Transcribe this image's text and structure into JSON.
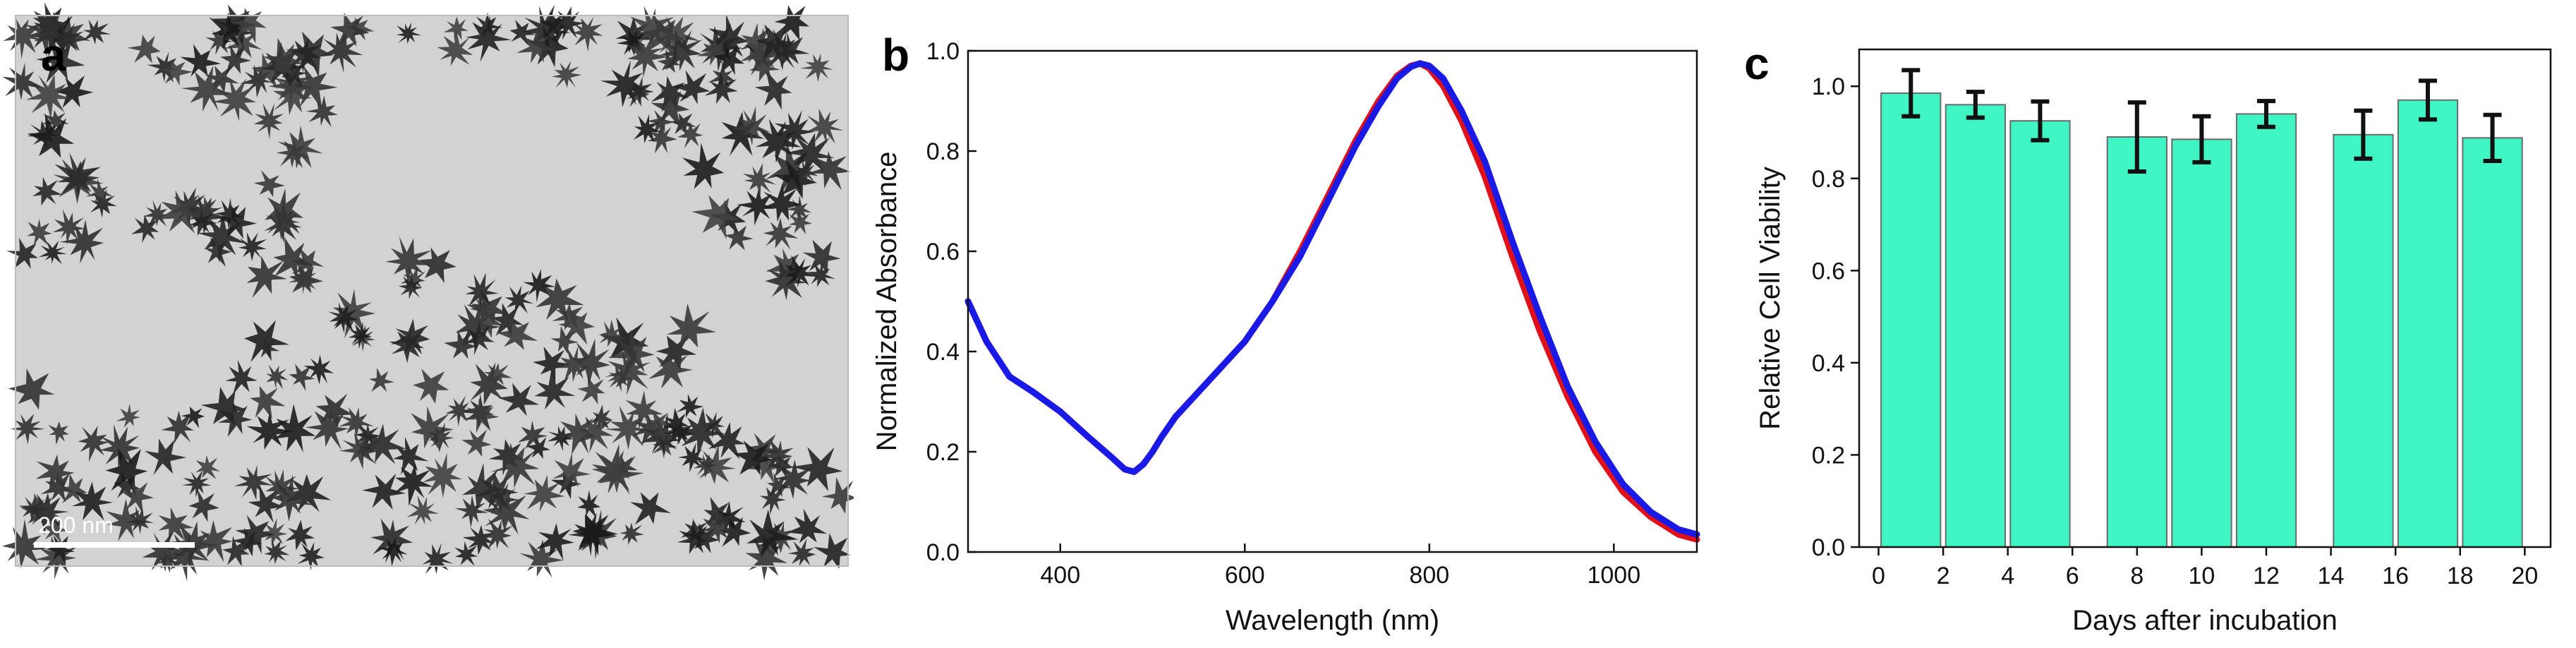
{
  "panels": {
    "a": {
      "label": "a",
      "scale_bar": "200  nm"
    },
    "b": {
      "label": "b"
    },
    "c": {
      "label": "c"
    }
  },
  "chart_data": [
    {
      "panel": "b",
      "type": "line",
      "title": "",
      "xlabel": "Wavelength (nm)",
      "ylabel": "Normalized Absorbance",
      "xlim": [
        300,
        1090
      ],
      "ylim": [
        0,
        1.0
      ],
      "xticks": [
        400,
        600,
        800,
        1000
      ],
      "yticks": [
        0.0,
        0.2,
        0.4,
        0.6,
        0.8,
        1.0
      ],
      "grid": false,
      "legend": "none",
      "series": [
        {
          "name": "red",
          "color": "#e0101a",
          "x": [
            300,
            320,
            345,
            370,
            400,
            430,
            455,
            470,
            480,
            490,
            500,
            510,
            525,
            545,
            570,
            600,
            630,
            660,
            690,
            720,
            745,
            765,
            780,
            790,
            800,
            815,
            835,
            860,
            890,
            920,
            950,
            980,
            1010,
            1040,
            1070,
            1090
          ],
          "y": [
            0.5,
            0.42,
            0.35,
            0.32,
            0.28,
            0.23,
            0.19,
            0.165,
            0.16,
            0.175,
            0.2,
            0.23,
            0.27,
            0.31,
            0.36,
            0.42,
            0.5,
            0.6,
            0.71,
            0.82,
            0.9,
            0.95,
            0.97,
            0.975,
            0.965,
            0.93,
            0.86,
            0.75,
            0.59,
            0.44,
            0.31,
            0.2,
            0.12,
            0.07,
            0.035,
            0.025
          ]
        },
        {
          "name": "blue",
          "color": "#1a1ae6",
          "x": [
            300,
            320,
            345,
            370,
            400,
            430,
            455,
            470,
            480,
            490,
            500,
            510,
            525,
            545,
            570,
            600,
            630,
            660,
            690,
            720,
            745,
            765,
            780,
            790,
            800,
            815,
            835,
            860,
            890,
            920,
            950,
            980,
            1010,
            1040,
            1070,
            1090
          ],
          "y": [
            0.5,
            0.42,
            0.35,
            0.32,
            0.28,
            0.23,
            0.19,
            0.165,
            0.16,
            0.175,
            0.2,
            0.23,
            0.27,
            0.31,
            0.36,
            0.42,
            0.5,
            0.59,
            0.7,
            0.81,
            0.89,
            0.945,
            0.968,
            0.975,
            0.97,
            0.945,
            0.88,
            0.78,
            0.62,
            0.47,
            0.33,
            0.22,
            0.135,
            0.08,
            0.045,
            0.035
          ]
        }
      ]
    },
    {
      "panel": "c",
      "type": "bar",
      "title": "",
      "xlabel": "Days after incubation",
      "ylabel": "Relative Cell Viability",
      "xlim": [
        -0.6,
        20.8
      ],
      "ylim": [
        0,
        1.08
      ],
      "xticks": [
        0,
        2,
        4,
        6,
        8,
        10,
        12,
        14,
        16,
        18,
        20
      ],
      "yticks": [
        0.0,
        0.2,
        0.4,
        0.6,
        0.8,
        1.0
      ],
      "grid": false,
      "legend": "none",
      "bar_color": "#40f5c4",
      "x": [
        1,
        3,
        5,
        8,
        10,
        12,
        15,
        17,
        19
      ],
      "values": [
        0.985,
        0.96,
        0.925,
        0.89,
        0.885,
        0.94,
        0.895,
        0.97,
        0.888
      ],
      "errors": [
        0.05,
        0.028,
        0.042,
        0.075,
        0.05,
        0.028,
        0.052,
        0.042,
        0.05
      ]
    }
  ]
}
